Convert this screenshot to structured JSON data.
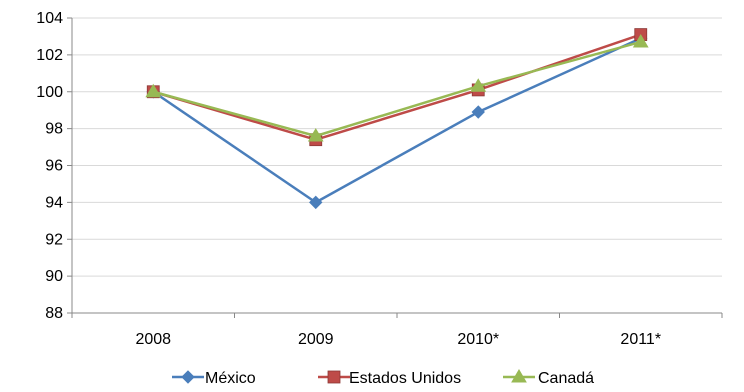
{
  "chart_data": {
    "type": "line",
    "categories": [
      "2008",
      "2009",
      "2010*",
      "2011*"
    ],
    "yticks": [
      88,
      90,
      92,
      94,
      96,
      98,
      100,
      102,
      104
    ],
    "ylim": [
      88,
      104
    ],
    "grid": true,
    "legend_position": "bottom",
    "series": [
      {
        "name": "México",
        "values": [
          100,
          94.0,
          98.9,
          102.9
        ],
        "color": "#4A7EBB",
        "marker": "diamond"
      },
      {
        "name": "Estados Unidos",
        "values": [
          100,
          97.4,
          100.1,
          103.1
        ],
        "color": "#BE4B48",
        "marker": "square"
      },
      {
        "name": "Canadá",
        "values": [
          100,
          97.6,
          100.3,
          102.7
        ],
        "color": "#98B954",
        "marker": "triangle"
      }
    ]
  }
}
